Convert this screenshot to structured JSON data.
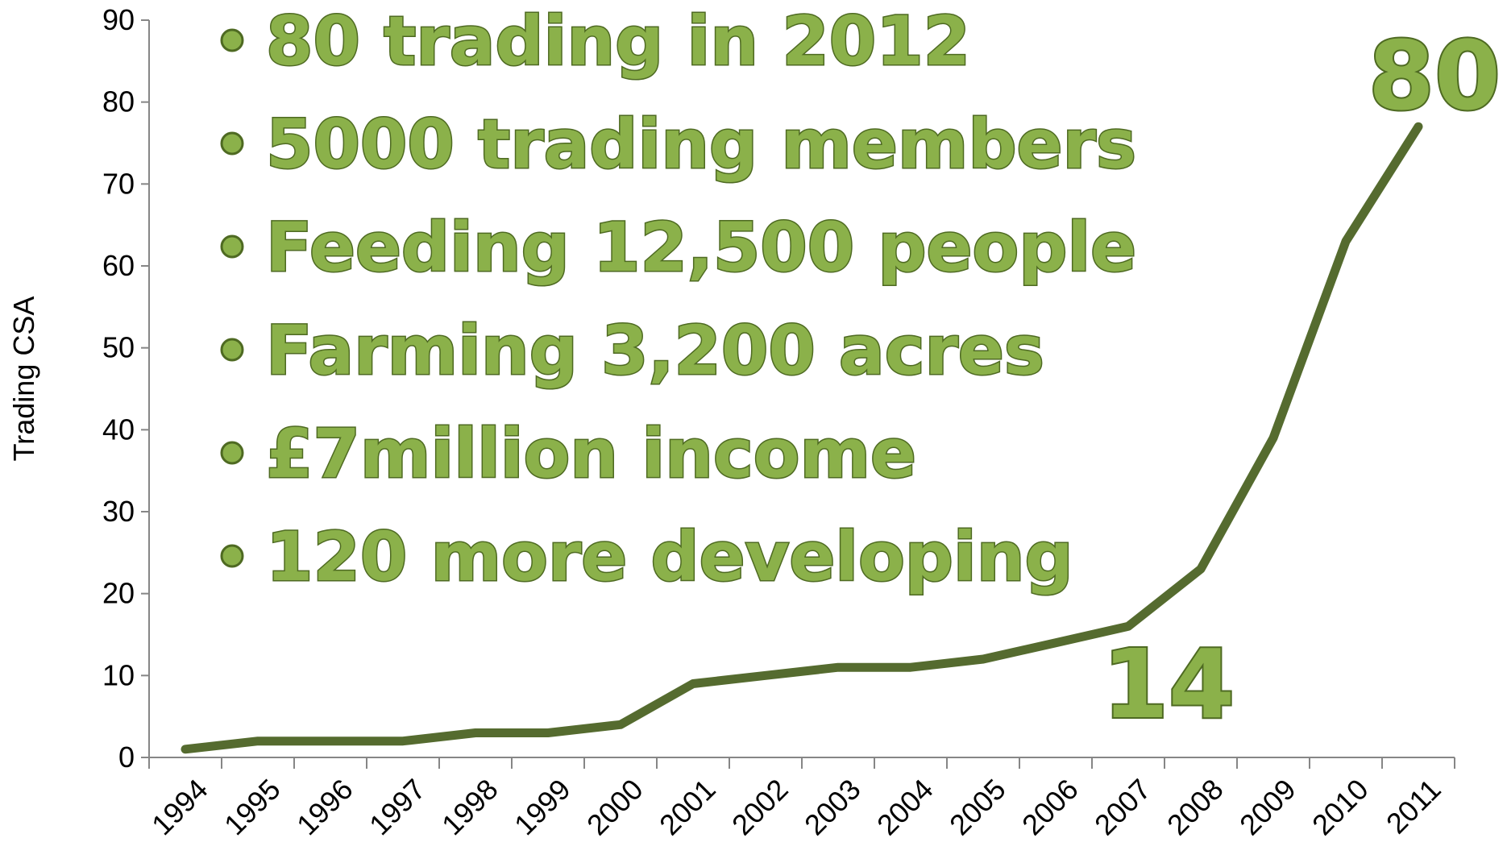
{
  "chart_data": {
    "type": "line",
    "title": "",
    "xlabel": "",
    "ylabel": "Trading CSA",
    "categories": [
      "1994",
      "1995",
      "1996",
      "1997",
      "1998",
      "1999",
      "2000",
      "2001",
      "2002",
      "2003",
      "2004",
      "2005",
      "2006",
      "2007",
      "2008",
      "2009",
      "2010",
      "2011"
    ],
    "values": [
      1,
      2,
      2,
      2,
      3,
      3,
      4,
      9,
      10,
      11,
      11,
      12,
      14,
      16,
      23,
      39,
      63,
      77
    ],
    "ylim": [
      0,
      90
    ],
    "yticks": [
      0,
      10,
      20,
      30,
      40,
      50,
      60,
      70,
      80,
      90
    ],
    "grid": false,
    "legend": "none",
    "line_color": "#556b2f",
    "annotations": {
      "bullets": [
        "80 trading in 2012",
        "5000 trading members",
        "Feeding 12,500 people",
        "Farming 3,200 acres",
        "£7million income",
        "120 more developing"
      ],
      "big_numbers": [
        {
          "text": "80",
          "anchor_year": "2011"
        },
        {
          "text": "14",
          "anchor_year": "2007"
        }
      ]
    }
  }
}
